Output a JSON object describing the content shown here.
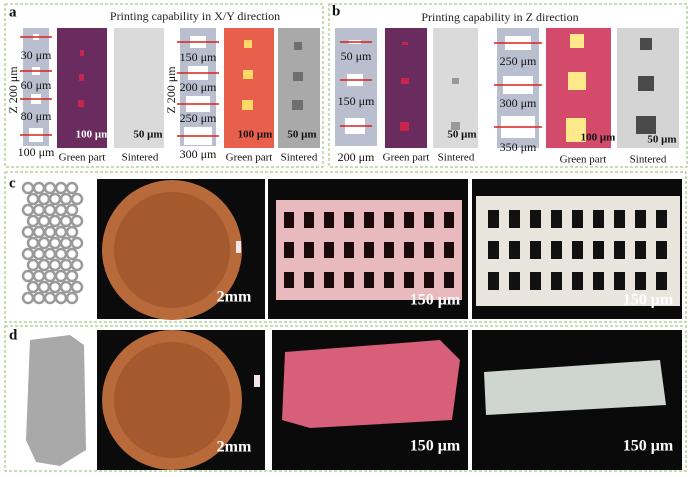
{
  "panel_a": {
    "label": "a",
    "title": "Printing capability in X/Y direction",
    "groups": [
      {
        "axis_label": "Z 200 μm",
        "sizes": [
          "30 μm",
          "60 μm",
          "80 μm",
          "100 μm"
        ],
        "scale_bars": [
          "100 μm",
          "50 μm"
        ],
        "captions": [
          "Green part",
          "Sintered"
        ]
      },
      {
        "axis_label": "Z 200 μm",
        "sizes": [
          "150 μm",
          "200 μm",
          "250 μm",
          "300 μm"
        ],
        "scale_bars": [
          "100 μm",
          "50 μm"
        ],
        "captions": [
          "Green part",
          "Sintered"
        ]
      }
    ]
  },
  "panel_b": {
    "label": "b",
    "title": "Printing capability in Z direction",
    "groups": [
      {
        "sizes": [
          "50 μm",
          "150 μm",
          "200 μm"
        ],
        "scale_bars": [
          "50 μm"
        ],
        "captions": [
          "Green part",
          "Sintered"
        ]
      },
      {
        "sizes": [
          "250 μm",
          "300 μm",
          "350 μm"
        ],
        "scale_bars": [
          "100 μm",
          "50 μm"
        ],
        "captions": [
          "Green part",
          "Sintered"
        ]
      }
    ]
  },
  "panel_c": {
    "label": "c",
    "scale_bars": [
      "2mm",
      "150 μm",
      "150 μm"
    ]
  },
  "panel_d": {
    "label": "d",
    "scale_bars": [
      "2mm",
      "150 μm",
      "150 μm"
    ]
  }
}
